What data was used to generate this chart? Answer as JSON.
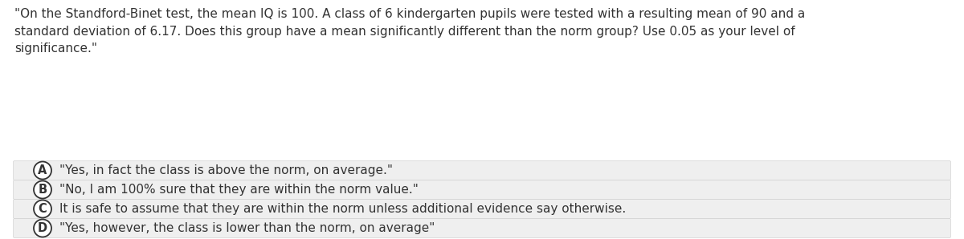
{
  "background_color": "#ffffff",
  "question_text": "\"On the Standford-Binet test, the mean IQ is 100. A class of 6 kindergarten pupils were tested with a resulting mean of 90 and a\nstandard deviation of 6.17. Does this group have a mean significantly different than the norm group? Use 0.05 as your level of\nsignificance.\"",
  "options": [
    {
      "label": "A",
      "text": "\"Yes, in fact the class is above the norm, on average.\""
    },
    {
      "label": "B",
      "text": "\"No, I am 100% sure that they are within the norm value.\""
    },
    {
      "label": "C",
      "text": "It is safe to assume that they are within the norm unless additional evidence say otherwise."
    },
    {
      "label": "D",
      "text": "\"Yes, however, the class is lower than the norm, on average\""
    }
  ],
  "option_bg_color": "#efefef",
  "option_border_color": "#cccccc",
  "text_color": "#333333",
  "circle_edge_color": "#333333",
  "circle_bg_color": "#ffffff",
  "question_fontsize": 11,
  "option_fontsize": 11,
  "label_fontsize": 10.5,
  "fig_width": 12.0,
  "fig_height": 2.98,
  "dpi": 100
}
